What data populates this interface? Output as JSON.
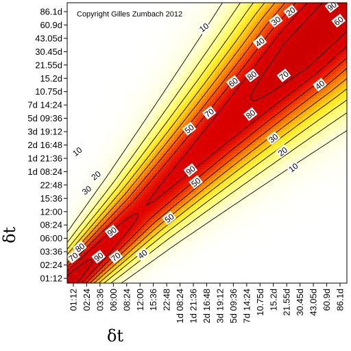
{
  "chart_data": {
    "type": "heatmap",
    "copyright": "Copyright Gilles Zumbach 2012",
    "xlabel": "δt",
    "ylabel": "δt",
    "ticks": [
      "01:12",
      "02:24",
      "03:36",
      "06:00",
      "08:24",
      "12:00",
      "15:36",
      "22:48",
      "1d 08:24",
      "1d 21:36",
      "2d 16:48",
      "3d 19:12",
      "5d 09:36",
      "7d 14:24",
      "10.75d",
      "15.2d",
      "21.55d",
      "30.45d",
      "43.05d",
      "60.9d",
      "86.1d"
    ],
    "colorscale": [
      "#ffffff",
      "#ffff80",
      "#ffd800",
      "#ff8000",
      "#e00000",
      "#c80000"
    ],
    "contour_levels": [
      10,
      20,
      30,
      40,
      50,
      60,
      70,
      80,
      90
    ],
    "contour_labels": [
      {
        "text": "10",
        "x": 0.3,
        "y": 9.5
      },
      {
        "text": "10",
        "x": 9.8,
        "y": 18.8
      },
      {
        "text": "10",
        "x": 16.5,
        "y": 8.3
      },
      {
        "text": "20",
        "x": 1.7,
        "y": 7.7
      },
      {
        "text": "20",
        "x": 16.3,
        "y": 20.0
      },
      {
        "text": "20",
        "x": 15.7,
        "y": 9.5
      },
      {
        "text": "30",
        "x": 1.0,
        "y": 6.6
      },
      {
        "text": "30",
        "x": 15.2,
        "y": 19.3
      },
      {
        "text": "30",
        "x": 15.0,
        "y": 10.5
      },
      {
        "text": "40",
        "x": 14.0,
        "y": 17.7
      },
      {
        "text": "40",
        "x": 18.5,
        "y": 14.5
      },
      {
        "text": "40",
        "x": 5.2,
        "y": 1.8
      },
      {
        "text": "50",
        "x": 8.7,
        "y": 11.2
      },
      {
        "text": "50",
        "x": 7.2,
        "y": 4.5
      },
      {
        "text": "50",
        "x": 9.2,
        "y": 7.2
      },
      {
        "text": "60",
        "x": 12.0,
        "y": 14.7
      },
      {
        "text": "60",
        "x": 19.9,
        "y": 19.3
      },
      {
        "text": "70",
        "x": 10.2,
        "y": 12.4
      },
      {
        "text": "70",
        "x": 15.8,
        "y": 15.2
      },
      {
        "text": "70",
        "x": 0.0,
        "y": 1.6
      },
      {
        "text": "70",
        "x": 3.2,
        "y": 1.6
      },
      {
        "text": "80",
        "x": 13.4,
        "y": 15.2
      },
      {
        "text": "80",
        "x": 13.3,
        "y": 12.3
      },
      {
        "text": "80",
        "x": 0.5,
        "y": 2.3
      },
      {
        "text": "90",
        "x": 19.4,
        "y": 20.4
      },
      {
        "text": "90",
        "x": 8.8,
        "y": 8.1
      },
      {
        "text": "90",
        "x": 2.9,
        "y": 3.5
      },
      {
        "text": "90",
        "x": 1.9,
        "y": 1.6
      }
    ]
  }
}
